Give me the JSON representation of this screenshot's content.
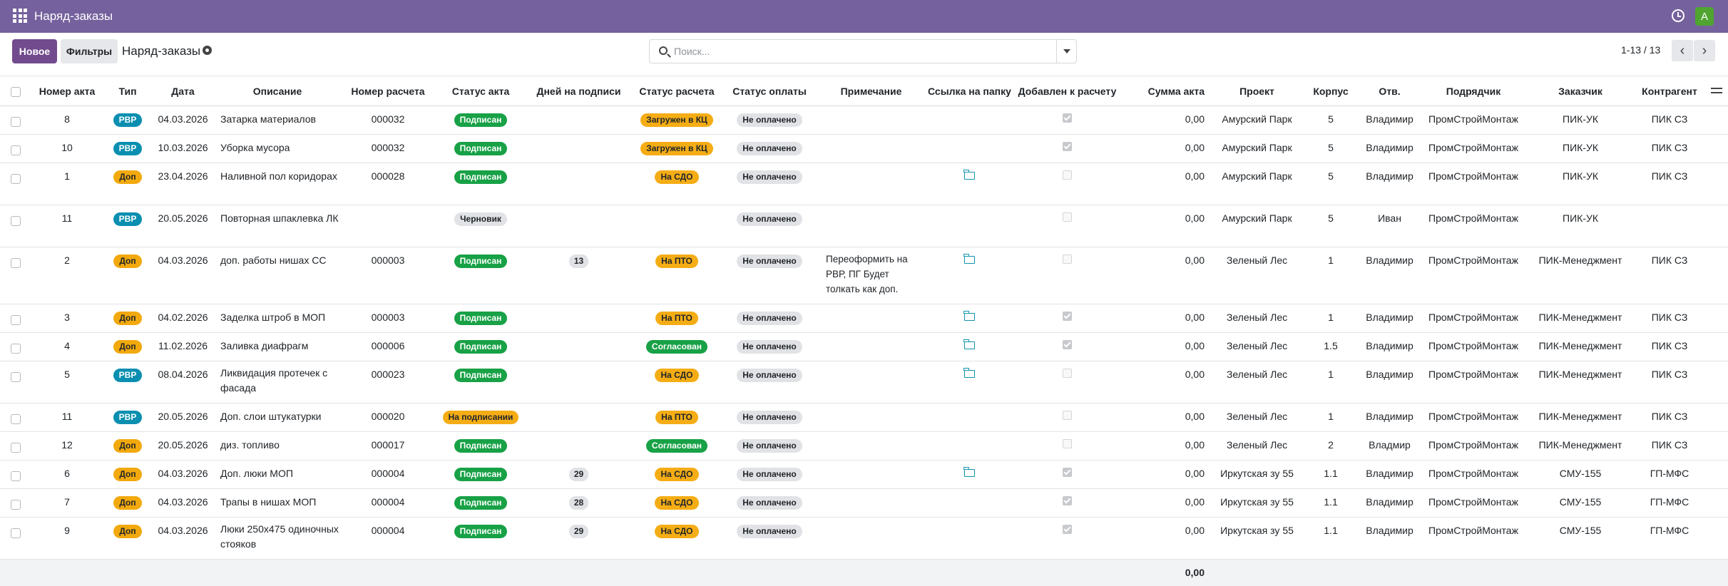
{
  "app": {
    "title": "Наряд-заказы",
    "user_initial": "A"
  },
  "toolbar": {
    "new_label": "Новое",
    "filters_label": "Фильтры",
    "breadcrumb": "Наряд-заказы"
  },
  "search": {
    "placeholder": "Поиск...",
    "value": ""
  },
  "pager": {
    "text": "1-13 / 13",
    "prev": "‹",
    "next": "›"
  },
  "columns": [
    "Номер акта",
    "Тип",
    "Дата",
    "Описание",
    "Номер расчета",
    "Статус акта",
    "Дней на подписи",
    "Статус расчета",
    "Статус оплаты",
    "Примечание",
    "Ссылка на папку",
    "Добавлен к расчету",
    "Сумма акта",
    "Проект",
    "Корпус",
    "Отв.",
    "Подрядчик",
    "Заказчик",
    "Контрагент"
  ],
  "colors": {
    "topbar": "#75619d",
    "new_button": "#714b8d",
    "type_rvr": "#0b8fb0",
    "type_dop": "#f2a90d",
    "status_green": "#18a146",
    "status_orange": "#f5ad15",
    "folder": "#0f93ad"
  },
  "rows": [
    {
      "num": "8",
      "type": "РВР",
      "date": "04.03.2026",
      "desc": "Затарка материалов",
      "calc": "000032",
      "act_status": "Подписан",
      "days": "",
      "calc_status": "Загружен в КЦ",
      "pay_status": "Не оплачено",
      "note": "",
      "folder": false,
      "added": true,
      "sum": "0,00",
      "project": "Амурский Парк",
      "building": "5",
      "resp": "Владимир",
      "contractor": "ПромСтройМонтаж",
      "customer": "ПИК-УК",
      "counterparty": "ПИК СЗ"
    },
    {
      "num": "10",
      "type": "РВР",
      "date": "10.03.2026",
      "desc": "Уборка мусора",
      "calc": "000032",
      "act_status": "Подписан",
      "days": "",
      "calc_status": "Загружен в КЦ",
      "pay_status": "Не оплачено",
      "note": "",
      "folder": false,
      "added": true,
      "sum": "0,00",
      "project": "Амурский Парк",
      "building": "5",
      "resp": "Владимир",
      "contractor": "ПромСтройМонтаж",
      "customer": "ПИК-УК",
      "counterparty": "ПИК СЗ"
    },
    {
      "num": "1",
      "type": "Доп",
      "date": "23.04.2026",
      "desc": "Наливной пол коридорах",
      "calc": "000028",
      "act_status": "Подписан",
      "days": "",
      "calc_status": "На СДО",
      "pay_status": "Не оплачено",
      "note": "",
      "folder": true,
      "added": false,
      "sum": "0,00",
      "project": "Амурский Парк",
      "building": "5",
      "resp": "Владимир",
      "contractor": "ПромСтройМонтаж",
      "customer": "ПИК-УК",
      "counterparty": "ПИК СЗ"
    },
    {
      "num": "11",
      "type": "РВР",
      "date": "20.05.2026",
      "desc": "Повторная шпаклевка ЛК",
      "calc": "",
      "act_status": "Черновик",
      "days": "",
      "calc_status": "",
      "pay_status": "Не оплачено",
      "note": "",
      "folder": false,
      "added": false,
      "sum": "0,00",
      "project": "Амурский Парк",
      "building": "5",
      "resp": "Иван",
      "contractor": "ПромСтройМонтаж",
      "customer": "ПИК-УК",
      "counterparty": ""
    },
    {
      "num": "2",
      "type": "Доп",
      "date": "04.03.2026",
      "desc": "доп. работы нишах СС",
      "calc": "000003",
      "act_status": "Подписан",
      "days": "13",
      "calc_status": "На ПТО",
      "pay_status": "Не оплачено",
      "note": "Переоформить на РВР, ПГ Будет толкать как доп.",
      "folder": true,
      "added": false,
      "sum": "0,00",
      "project": "Зеленый Лес",
      "building": "1",
      "resp": "Владимир",
      "contractor": "ПромСтройМонтаж",
      "customer": "ПИК-Менеджмент",
      "counterparty": "ПИК СЗ"
    },
    {
      "num": "3",
      "type": "Доп",
      "date": "04.02.2026",
      "desc": "Заделка штроб в МОП",
      "calc": "000003",
      "act_status": "Подписан",
      "days": "",
      "calc_status": "На ПТО",
      "pay_status": "Не оплачено",
      "note": "",
      "folder": true,
      "added": true,
      "sum": "0,00",
      "project": "Зеленый Лес",
      "building": "1",
      "resp": "Владимир",
      "contractor": "ПромСтройМонтаж",
      "customer": "ПИК-Менеджмент",
      "counterparty": "ПИК СЗ"
    },
    {
      "num": "4",
      "type": "Доп",
      "date": "11.02.2026",
      "desc": "Заливка диафрагм",
      "calc": "000006",
      "act_status": "Подписан",
      "days": "",
      "calc_status": "Согласован",
      "pay_status": "Не оплачено",
      "note": "",
      "folder": true,
      "added": true,
      "sum": "0,00",
      "project": "Зеленый Лес",
      "building": "1.5",
      "resp": "Владимир",
      "contractor": "ПромСтройМонтаж",
      "customer": "ПИК-Менеджмент",
      "counterparty": "ПИК СЗ"
    },
    {
      "num": "5",
      "type": "РВР",
      "date": "08.04.2026",
      "desc": "Ликвидация протечек с фасада",
      "calc": "000023",
      "act_status": "Подписан",
      "days": "",
      "calc_status": "На СДО",
      "pay_status": "Не оплачено",
      "note": "",
      "folder": true,
      "added": false,
      "sum": "0,00",
      "project": "Зеленый Лес",
      "building": "1",
      "resp": "Владимир",
      "contractor": "ПромСтройМонтаж",
      "customer": "ПИК-Менеджмент",
      "counterparty": "ПИК СЗ"
    },
    {
      "num": "11",
      "type": "РВР",
      "date": "20.05.2026",
      "desc": "Доп. слои штукатурки",
      "calc": "000020",
      "act_status": "На подписании",
      "days": "",
      "calc_status": "На ПТО",
      "pay_status": "Не оплачено",
      "note": "",
      "folder": false,
      "added": false,
      "sum": "0,00",
      "project": "Зеленый Лес",
      "building": "1",
      "resp": "Владимир",
      "contractor": "ПромСтройМонтаж",
      "customer": "ПИК-Менеджмент",
      "counterparty": "ПИК СЗ"
    },
    {
      "num": "12",
      "type": "Доп",
      "date": "20.05.2026",
      "desc": "диз. топливо",
      "calc": "000017",
      "act_status": "Подписан",
      "days": "",
      "calc_status": "Согласован",
      "pay_status": "Не оплачено",
      "note": "",
      "folder": false,
      "added": false,
      "sum": "0,00",
      "project": "Зеленый Лес",
      "building": "2",
      "resp": "Владмир",
      "contractor": "ПромСтройМонтаж",
      "customer": "ПИК-Менеджмент",
      "counterparty": "ПИК СЗ"
    },
    {
      "num": "6",
      "type": "Доп",
      "date": "04.03.2026",
      "desc": "Доп. люки МОП",
      "calc": "000004",
      "act_status": "Подписан",
      "days": "29",
      "calc_status": "На СДО",
      "pay_status": "Не оплачено",
      "note": "",
      "folder": true,
      "added": true,
      "sum": "0,00",
      "project": "Иркутская зу 55",
      "building": "1.1",
      "resp": "Владимир",
      "contractor": "ПромСтройМонтаж",
      "customer": "СМУ-155",
      "counterparty": "ГП-МФС"
    },
    {
      "num": "7",
      "type": "Доп",
      "date": "04.03.2026",
      "desc": "Трапы в нишах МОП",
      "calc": "000004",
      "act_status": "Подписан",
      "days": "28",
      "calc_status": "На СДО",
      "pay_status": "Не оплачено",
      "note": "",
      "folder": false,
      "added": true,
      "sum": "0,00",
      "project": "Иркутская зу 55",
      "building": "1.1",
      "resp": "Владимир",
      "contractor": "ПромСтройМонтаж",
      "customer": "СМУ-155",
      "counterparty": "ГП-МФС"
    },
    {
      "num": "9",
      "type": "Доп",
      "date": "04.03.2026",
      "desc": "Люки 250х475 одиночных стояков",
      "calc": "000004",
      "act_status": "Подписан",
      "days": "29",
      "calc_status": "На СДО",
      "pay_status": "Не оплачено",
      "note": "",
      "folder": false,
      "added": true,
      "sum": "0,00",
      "project": "Иркутская зу 55",
      "building": "1.1",
      "resp": "Владимир",
      "contractor": "ПромСтройМонтаж",
      "customer": "СМУ-155",
      "counterparty": "ГП-МФС"
    }
  ],
  "total": "0,00"
}
